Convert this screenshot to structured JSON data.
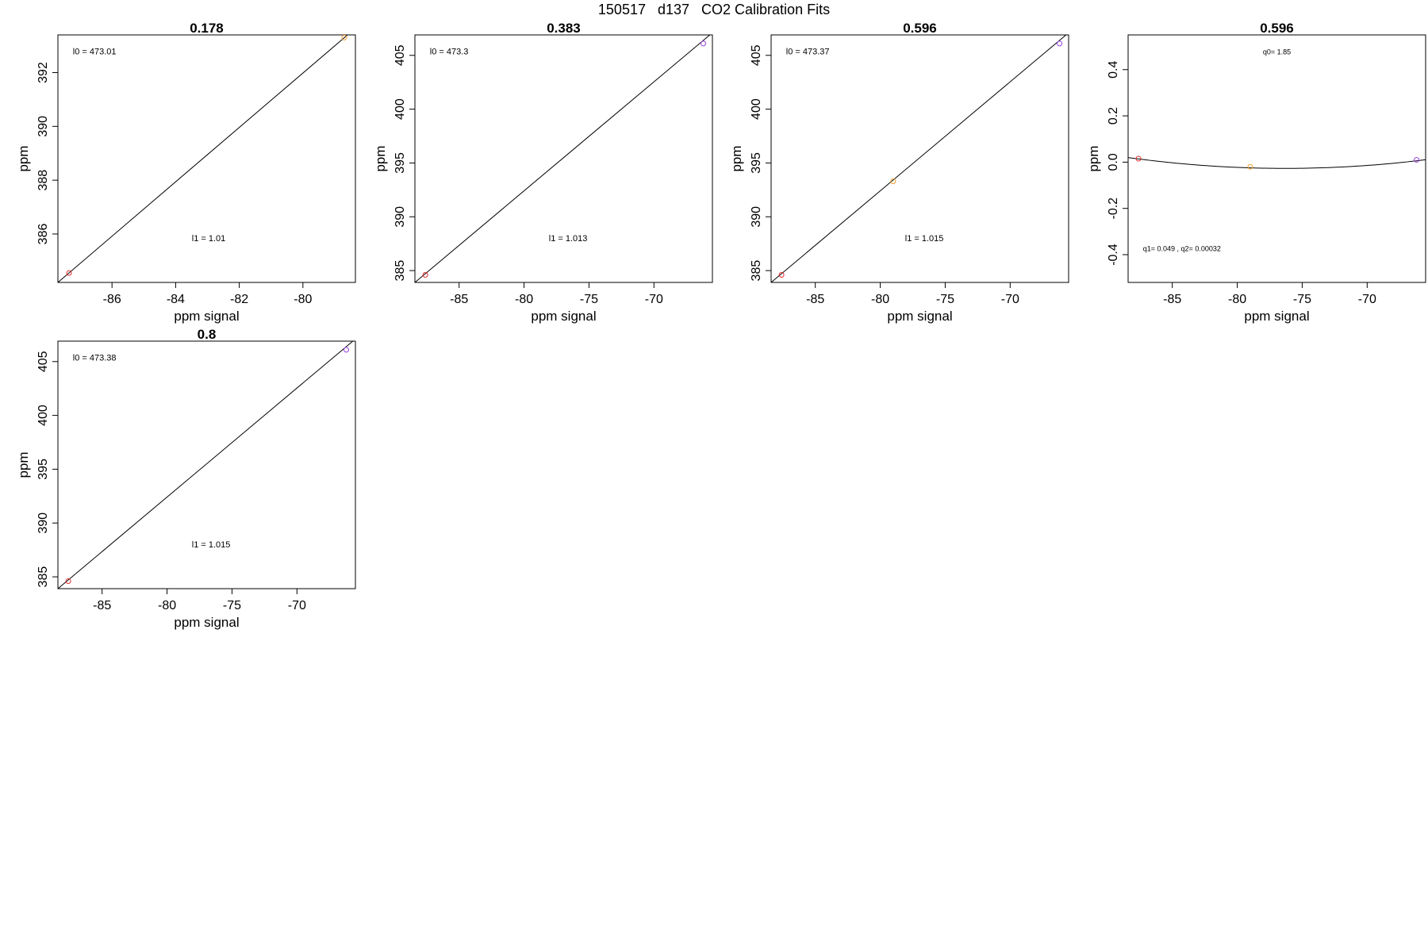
{
  "figure": {
    "title": "150517   d137   CO2 Calibration Fits"
  },
  "chart_data": [
    {
      "type": "scatter",
      "title": "0.178",
      "xlabel": "ppm signal",
      "ylabel": "ppm",
      "xlim": [
        -87.7,
        -78.35
      ],
      "ylim": [
        384.2,
        393.4
      ],
      "xticks": [
        -86,
        -84,
        -82,
        -80
      ],
      "xtick_labels": [
        "-86",
        "-84",
        "-82",
        "-80"
      ],
      "yticks": [
        386,
        388,
        390,
        392
      ],
      "ytick_labels": [
        "386",
        "388",
        "390",
        "392"
      ],
      "points": [
        {
          "x": -87.35,
          "y": 384.55,
          "color": "#e03030"
        },
        {
          "x": -78.7,
          "y": 393.3,
          "color": "#f0a030"
        }
      ],
      "fit_line": [
        [
          -87.7,
          384.2
        ],
        [
          -78.35,
          393.65
        ]
      ],
      "annotations": [
        {
          "label": "l0 = ",
          "value": "473.01",
          "pos": "top-left"
        },
        {
          "label": "l1 = ",
          "value": "1.01",
          "pos": "center-lower"
        }
      ]
    },
    {
      "type": "scatter",
      "title": "0.383",
      "xlabel": "ppm signal",
      "ylabel": "ppm",
      "xlim": [
        -88.4,
        -65.5
      ],
      "ylim": [
        383.9,
        406.9
      ],
      "xticks": [
        -85,
        -80,
        -75,
        -70
      ],
      "xtick_labels": [
        "-85",
        "-80",
        "-75",
        "-70"
      ],
      "yticks": [
        385,
        390,
        395,
        400,
        405
      ],
      "ytick_labels": [
        "385",
        "390",
        "395",
        "400",
        "405"
      ],
      "points": [
        {
          "x": -87.6,
          "y": 384.6,
          "color": "#e03030"
        },
        {
          "x": -66.2,
          "y": 406.1,
          "color": "#9a40e0"
        }
      ],
      "fit_line": [
        [
          -88.4,
          383.9
        ],
        [
          -65.5,
          407.1
        ]
      ],
      "annotations": [
        {
          "label": "l0 = ",
          "value": "473.3",
          "pos": "top-left"
        },
        {
          "label": "l1 = ",
          "value": "1.013",
          "pos": "center-lower"
        }
      ]
    },
    {
      "type": "scatter",
      "title": "0.596",
      "xlabel": "ppm signal",
      "ylabel": "ppm",
      "xlim": [
        -88.4,
        -65.5
      ],
      "ylim": [
        383.9,
        406.9
      ],
      "xticks": [
        -85,
        -80,
        -75,
        -70
      ],
      "xtick_labels": [
        "-85",
        "-80",
        "-75",
        "-70"
      ],
      "yticks": [
        385,
        390,
        395,
        400,
        405
      ],
      "ytick_labels": [
        "385",
        "390",
        "395",
        "400",
        "405"
      ],
      "points": [
        {
          "x": -87.6,
          "y": 384.6,
          "color": "#e03030"
        },
        {
          "x": -79.0,
          "y": 393.3,
          "color": "#f0a030"
        },
        {
          "x": -66.2,
          "y": 406.1,
          "color": "#9a40e0"
        }
      ],
      "fit_line": [
        [
          -88.4,
          383.9
        ],
        [
          -65.5,
          407.1
        ]
      ],
      "annotations": [
        {
          "label": "l0 = ",
          "value": "473.37",
          "pos": "top-left"
        },
        {
          "label": "l1 = ",
          "value": "1.015",
          "pos": "center-lower"
        }
      ]
    },
    {
      "type": "scatter",
      "title": "0.596",
      "xlabel": "ppm signal",
      "ylabel": "ppm",
      "xlim": [
        -88.4,
        -65.5
      ],
      "ylim": [
        -0.52,
        0.55
      ],
      "xticks": [
        -85,
        -80,
        -75,
        -70
      ],
      "xtick_labels": [
        "-85",
        "-80",
        "-75",
        "-70"
      ],
      "yticks": [
        -0.4,
        -0.2,
        0.0,
        0.2,
        0.4
      ],
      "ytick_labels": [
        "-0.4",
        "-0.2",
        "0.0",
        "0.2",
        "0.4"
      ],
      "points": [
        {
          "x": -87.6,
          "y": 0.015,
          "color": "#e03030"
        },
        {
          "x": -79.0,
          "y": -0.02,
          "color": "#f0a030"
        },
        {
          "x": -66.2,
          "y": 0.01,
          "color": "#9a40e0"
        }
      ],
      "fit_curve": {
        "x_min": -88.4,
        "x_max": -65.5,
        "vertex_x": -76.3,
        "vertex_y": -0.027,
        "a": 0.00032
      },
      "annotations": [
        {
          "label": "q0= ",
          "value": "1.85",
          "pos": "top-center"
        },
        {
          "label": "q1= 0.049 , q2= ",
          "value": "0.00032",
          "pos": "bottom-left"
        }
      ]
    },
    {
      "type": "scatter",
      "title": "0.8",
      "xlabel": "ppm signal",
      "ylabel": "ppm",
      "xlim": [
        -88.4,
        -65.5
      ],
      "ylim": [
        383.9,
        406.9
      ],
      "xticks": [
        -85,
        -80,
        -75,
        -70
      ],
      "xtick_labels": [
        "-85",
        "-80",
        "-75",
        "-70"
      ],
      "yticks": [
        385,
        390,
        395,
        400,
        405
      ],
      "ytick_labels": [
        "385",
        "390",
        "395",
        "400",
        "405"
      ],
      "points": [
        {
          "x": -87.6,
          "y": 384.6,
          "color": "#e03030"
        },
        {
          "x": -66.2,
          "y": 406.1,
          "color": "#9a40e0"
        }
      ],
      "fit_line": [
        [
          -88.4,
          383.9
        ],
        [
          -65.5,
          407.1
        ]
      ],
      "annotations": [
        {
          "label": "l0 = ",
          "value": "473.38",
          "pos": "top-left"
        },
        {
          "label": "l1 = ",
          "value": "1.015",
          "pos": "center-lower"
        }
      ]
    }
  ]
}
